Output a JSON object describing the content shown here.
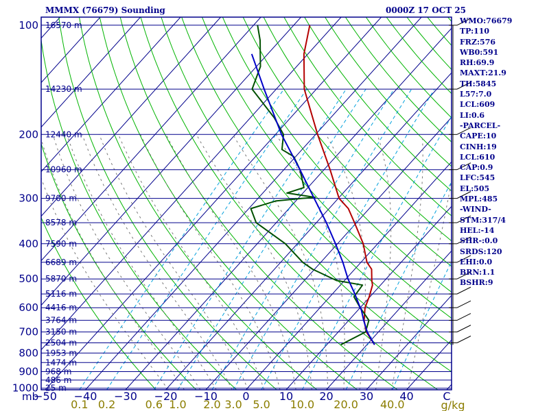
{
  "header": {
    "title": "MMMX (76679) Sounding",
    "datetime": "0000Z 17 OCT 25"
  },
  "indices": [
    "WMO:76679",
    "TP:110",
    "FRZ:576",
    "WB0:591",
    "RH:69.9",
    "MAXT:21.9",
    "TH:5845",
    "L57:7.0",
    "LCL:609",
    "LI:0.6",
    "-PARCEL-",
    "CAPE:10",
    "CINH:19",
    "LCL:610",
    "CAP:0.9",
    "LFC:545",
    "EL:505",
    "MPL:485",
    "-WIND-",
    "STM:317/4",
    "HEL:-14",
    "SHR-:0.0",
    "SRDS:120",
    "EHI:0.0",
    "BRN:1.1",
    "BSHR:9"
  ],
  "colors": {
    "frame": "#00008b",
    "temperature": "#b40000",
    "dewpoint": "#005000",
    "parcel": "#0000c8",
    "dry_adiabat": "#00b400",
    "mixing_ratio": "#00a0dc",
    "moist_adiabat": "#787878",
    "mixing_ratio_labels": "#8b7d00"
  },
  "chart_data": {
    "type": "skew-t",
    "pressure_axis": {
      "unit": "mb",
      "range": [
        1000,
        100
      ],
      "scale": "log",
      "ticks": [
        "100",
        "200",
        "300",
        "400",
        "500",
        "600",
        "700",
        "800",
        "900",
        "1000"
      ]
    },
    "temperature_axis": {
      "unit": "C",
      "range": [
        -50,
        50
      ],
      "ticks": [
        "−50",
        "−40",
        "−30",
        "−20",
        "−10",
        "0",
        "10",
        "20",
        "30",
        "40",
        "C"
      ]
    },
    "mixing_ratio_axis": {
      "unit": "g/kg",
      "ticks": [
        "0.1",
        "0.2",
        "0.6",
        "1.0",
        "2.0",
        "3.0",
        "5.0",
        "10.0",
        "20.0",
        "40.0"
      ],
      "unit_label": "g/kg"
    },
    "height_labels": [
      {
        "p": 100,
        "label": "16570 m"
      },
      {
        "p": 150,
        "label": "14230 m"
      },
      {
        "p": 200,
        "label": "12440 m"
      },
      {
        "p": 250,
        "label": "10960 m"
      },
      {
        "p": 300,
        "label": "9700 m"
      },
      {
        "p": 350,
        "label": "8578 m"
      },
      {
        "p": 400,
        "label": "7590 m"
      },
      {
        "p": 450,
        "label": "6689 m"
      },
      {
        "p": 500,
        "label": "5870 m"
      },
      {
        "p": 550,
        "label": "5116 m"
      },
      {
        "p": 600,
        "label": "4416 m"
      },
      {
        "p": 650,
        "label": "3764 m"
      },
      {
        "p": 700,
        "label": "3150 m"
      },
      {
        "p": 750,
        "label": "2504 m"
      },
      {
        "p": 800,
        "label": "1953 m"
      },
      {
        "p": 850,
        "label": "1474 m"
      },
      {
        "p": 900,
        "label": "968 m"
      },
      {
        "p": 950,
        "label": "486 m"
      },
      {
        "p": 1000,
        "label": "25 m"
      }
    ],
    "series": [
      {
        "name": "temperature",
        "points": [
          [
            759,
            21.9
          ],
          [
            700,
            17.0
          ],
          [
            650,
            13.8
          ],
          [
            600,
            11.2
          ],
          [
            560,
            9.8
          ],
          [
            520,
            8.0
          ],
          [
            505,
            6.8
          ],
          [
            470,
            4.2
          ],
          [
            450,
            1.5
          ],
          [
            400,
            -3.6
          ],
          [
            350,
            -10.5
          ],
          [
            320,
            -15.2
          ],
          [
            300,
            -19.8
          ],
          [
            250,
            -28.5
          ],
          [
            200,
            -39.5
          ],
          [
            150,
            -53.0
          ],
          [
            120,
            -61.0
          ],
          [
            100,
            -66.0
          ]
        ]
      },
      {
        "name": "dewpoint",
        "points": [
          [
            759,
            13.5
          ],
          [
            700,
            16.8
          ],
          [
            650,
            15.0
          ],
          [
            600,
            10.0
          ],
          [
            560,
            6.0
          ],
          [
            520,
            5.5
          ],
          [
            505,
            -2.0
          ],
          [
            470,
            -10.5
          ],
          [
            450,
            -14.5
          ],
          [
            400,
            -23.0
          ],
          [
            350,
            -35.0
          ],
          [
            320,
            -39.5
          ],
          [
            305,
            -35.0
          ],
          [
            300,
            -29.0
          ],
          [
            298,
            -26.0
          ],
          [
            290,
            -34.0
          ],
          [
            280,
            -31.0
          ],
          [
            250,
            -36.0
          ],
          [
            230,
            -40.5
          ],
          [
            220,
            -45.0
          ],
          [
            200,
            -48.0
          ],
          [
            180,
            -54.0
          ],
          [
            150,
            -66.0
          ],
          [
            130,
            -69.0
          ],
          [
            110,
            -75.0
          ],
          [
            100,
            -79.0
          ]
        ]
      },
      {
        "name": "parcel",
        "points": [
          [
            759,
            21.9
          ],
          [
            700,
            17.2
          ],
          [
            650,
            13.7
          ],
          [
            610,
            10.9
          ],
          [
            600,
            10.0
          ],
          [
            550,
            5.6
          ],
          [
            500,
            0.5
          ],
          [
            450,
            -4.5
          ],
          [
            400,
            -10.5
          ],
          [
            350,
            -17.5
          ],
          [
            300,
            -26.0
          ],
          [
            250,
            -36.0
          ],
          [
            200,
            -48.5
          ],
          [
            150,
            -63.0
          ],
          [
            120,
            -74.0
          ]
        ]
      }
    ],
    "winds": [
      {
        "p": 100
      },
      {
        "p": 150
      },
      {
        "p": 200
      },
      {
        "p": 250
      },
      {
        "p": 300
      },
      {
        "p": 350
      },
      {
        "p": 400
      },
      {
        "p": 450
      },
      {
        "p": 500
      },
      {
        "p": 550
      },
      {
        "p": 600
      },
      {
        "p": 650
      },
      {
        "p": 700
      },
      {
        "p": 750
      }
    ]
  }
}
